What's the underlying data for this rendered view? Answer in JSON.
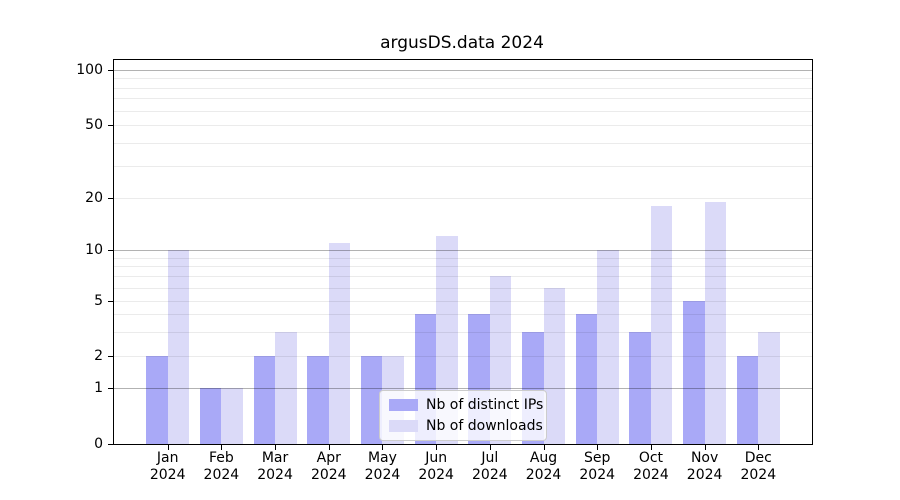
{
  "chart_data": {
    "type": "bar",
    "title": "argusDS.data 2024",
    "categories": [
      "Jan",
      "Feb",
      "Mar",
      "Apr",
      "May",
      "Jun",
      "Jul",
      "Aug",
      "Sep",
      "Oct",
      "Nov",
      "Dec"
    ],
    "category_year": "2024",
    "series": [
      {
        "name": "Nb of distinct IPs",
        "color": "#a9a9f7",
        "values": [
          2,
          1,
          2,
          2,
          2,
          4,
          4,
          3,
          4,
          3,
          5,
          2
        ]
      },
      {
        "name": "Nb of downloads",
        "color": "#dbdaf8",
        "values": [
          10,
          1,
          3,
          11,
          2,
          12,
          7,
          6,
          10,
          18,
          19,
          3
        ]
      }
    ],
    "xlabel": "",
    "ylabel": "",
    "yscale": "asinh",
    "ylim": [
      0,
      115
    ],
    "yticks": [
      0,
      1,
      2,
      5,
      10,
      20,
      50,
      100
    ],
    "major_grid_values": [
      1,
      10,
      100
    ],
    "minor_grid_values": [
      2,
      3,
      4,
      5,
      6,
      7,
      8,
      9,
      20,
      30,
      40,
      50,
      60,
      70,
      80,
      90
    ],
    "grid": true,
    "legend_position": "lower center"
  }
}
